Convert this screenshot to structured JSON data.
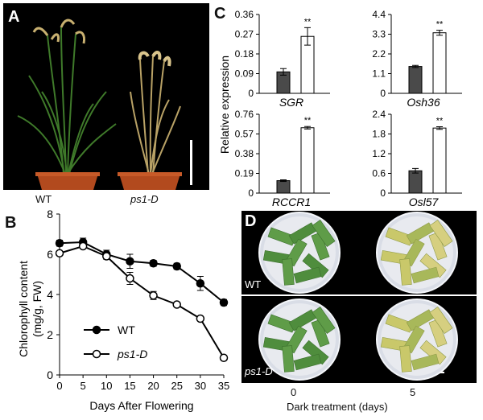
{
  "panel_a": {
    "letter": "A",
    "labels": [
      "WT",
      "ps1-D"
    ]
  },
  "panel_b": {
    "letter": "B"
  },
  "panel_c": {
    "letter": "C"
  },
  "panel_d": {
    "letter": "D",
    "row_labels": [
      "WT",
      "ps1-D"
    ],
    "col_labels": [
      "0",
      "5"
    ],
    "xlabel": "Dark treatment (days)"
  },
  "colors": {
    "wt_bar": "#4a4a4a",
    "mutant_bar": "#ffffff",
    "line": "#000000"
  },
  "chart_data": [
    {
      "type": "line",
      "x": [
        0,
        5,
        10,
        15,
        20,
        25,
        30,
        35
      ],
      "series": [
        {
          "name": "WT",
          "marker": "filled",
          "values": [
            6.55,
            6.6,
            6.0,
            5.65,
            5.55,
            5.4,
            4.55,
            3.6
          ],
          "errors": [
            0.15,
            0.2,
            0.2,
            0.35,
            0.15,
            0.15,
            0.35,
            0.15
          ]
        },
        {
          "name": "ps1-D",
          "marker": "open",
          "values": [
            6.05,
            6.4,
            5.9,
            4.8,
            3.95,
            3.5,
            2.8,
            0.85
          ],
          "errors": [
            0.1,
            0.1,
            0.15,
            0.3,
            0.2,
            0.1,
            0.1,
            0.05
          ]
        }
      ],
      "xticks": [
        0,
        5,
        10,
        15,
        20,
        25,
        30,
        35
      ],
      "yticks": [
        0,
        2,
        4,
        6,
        8
      ],
      "xlabel": "Days After Flowering",
      "ylabel": "Chlorophyll content",
      "ylabel2": "(mg/g, FW)",
      "xlim": [
        0,
        35
      ],
      "ylim": [
        0,
        8
      ],
      "legend": "bottom-left"
    },
    {
      "type": "bar",
      "gene": "SGR",
      "values": [
        0.098,
        0.26
      ],
      "errors": [
        0.015,
        0.04
      ],
      "yticks": [
        "0",
        "0.09",
        "0.18",
        "0.27",
        "0.36"
      ],
      "ylim": [
        0,
        0.36
      ],
      "significance": "**"
    },
    {
      "type": "bar",
      "gene": "Osh36",
      "values": [
        1.5,
        3.38
      ],
      "errors": [
        0.06,
        0.14
      ],
      "yticks": [
        "0",
        "1.1",
        "2.2",
        "3.3",
        "4.4"
      ],
      "ylim": [
        0,
        4.4
      ],
      "significance": "**"
    },
    {
      "type": "bar",
      "gene": "RCCR1",
      "values": [
        0.12,
        0.63
      ],
      "errors": [
        0.008,
        0.012
      ],
      "yticks": [
        "0",
        "0.19",
        "0.38",
        "0.57",
        "0.76"
      ],
      "ylim": [
        0,
        0.76
      ],
      "significance": "**"
    },
    {
      "type": "bar",
      "gene": "Osl57",
      "values": [
        0.68,
        1.98
      ],
      "errors": [
        0.07,
        0.04
      ],
      "yticks": [
        "0",
        "0.6",
        "1.2",
        "1.8",
        "2.4"
      ],
      "ylim": [
        0,
        2.4
      ],
      "significance": "**"
    }
  ],
  "shared_ylabel_c": "Relative expression"
}
